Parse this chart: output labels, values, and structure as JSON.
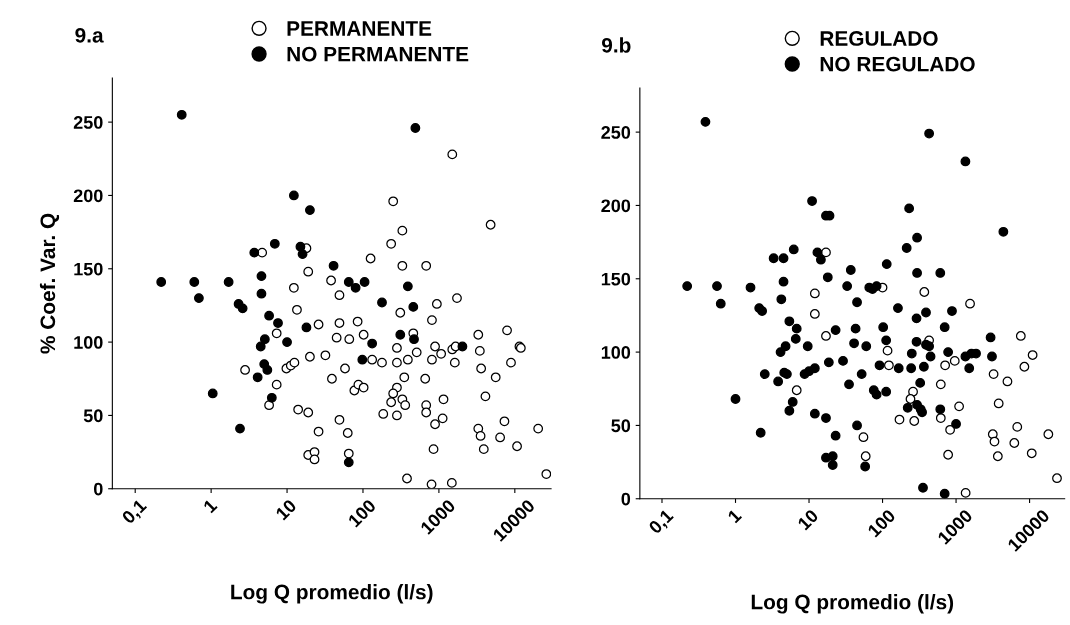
{
  "chart_data": [
    {
      "type": "scatter",
      "title": "9.a",
      "xlabel": "Log Q promedio (l/s)",
      "ylabel": "% Coef. Var. Q",
      "log": "x",
      "legend": "top",
      "marker": "circle",
      "grid": false,
      "xlim": [
        0.05,
        30000
      ],
      "ylim": [
        0,
        280
      ],
      "xticks": [
        {
          "value": 0.1,
          "label": "0,1"
        },
        1,
        10,
        100,
        1000,
        10000
      ],
      "yticks": [
        0,
        50,
        100,
        150,
        200,
        250
      ],
      "series": [
        {
          "name": "PERMANENTE",
          "color": "#ffffff",
          "x": [
            4.7,
            18,
            19,
            12.3,
            13.5,
            26,
            7.3,
            32,
            20,
            2.8,
            9.8,
            11.2,
            12.5,
            7.3,
            5.8,
            14,
            19,
            26,
            19,
            23,
            23,
            1500,
            250,
            330,
            235,
            4800,
            126,
            330,
            680,
            38,
            49,
            310,
            940,
            1730,
            810,
            85,
            49,
            102,
            45,
            66,
            460,
            3300,
            7900,
            280,
            890,
            1500,
            1660,
            1070,
            510,
            11500,
            12000,
            3460,
            132,
            178,
            280,
            390,
            810,
            1620,
            3600,
            8900,
            58,
            39,
            350,
            660,
            5600,
            77,
            87,
            102,
            280,
            250,
            330,
            360,
            235,
            185,
            280,
            680,
            680,
            1150,
            4100,
            890,
            1120,
            3300,
            3540,
            7300,
            6400,
            3900,
            10700,
            20300,
            49,
            63,
            65,
            850,
            380,
            800,
            1480,
            26000
          ],
          "values": [
            161,
            164,
            148,
            137,
            122,
            112,
            106,
            91,
            90,
            81,
            82,
            84,
            86,
            71,
            57,
            54,
            52,
            39,
            23,
            25,
            20,
            228,
            196,
            176,
            167,
            180,
            157,
            152,
            152,
            142,
            132,
            120,
            126,
            130,
            115,
            114,
            113,
            105,
            103,
            102,
            106,
            105,
            108,
            96,
            97,
            95,
            97,
            92,
            93,
            97,
            96,
            94,
            88,
            86,
            86,
            88,
            88,
            86,
            82,
            86,
            82,
            75,
            76,
            75,
            76,
            67,
            71,
            69,
            69,
            65,
            61,
            57,
            59,
            51,
            50,
            57,
            52,
            61,
            63,
            44,
            48,
            41,
            36,
            46,
            35,
            27,
            29,
            41,
            47,
            38,
            24,
            27,
            7,
            3,
            4,
            10
          ]
        },
        {
          "name": "NO PERMANENTE",
          "color": "#000000",
          "x": [
            0.41,
            12.3,
            20,
            6.9,
            3.7,
            15,
            16,
            0.22,
            0.6,
            1.7,
            0.69,
            4.6,
            4.6,
            2.3,
            2.6,
            5.8,
            7.6,
            18,
            5.1,
            4.5,
            10,
            5.0,
            5.5,
            4.1,
            1.05,
            6.3,
            2.4,
            490,
            41,
            65,
            80,
            105,
            390,
            178,
            460,
            132,
            310,
            470,
            98,
            2040,
            65
          ],
          "values": [
            255,
            200,
            190,
            167,
            161,
            165,
            160,
            141,
            141,
            141,
            130,
            145,
            133,
            126,
            123,
            118,
            113,
            110,
            102,
            97,
            100,
            85,
            81,
            76,
            65,
            62,
            41,
            246,
            152,
            141,
            137,
            141,
            138,
            127,
            124,
            99,
            105,
            102,
            88,
            97,
            18
          ]
        }
      ]
    },
    {
      "type": "scatter",
      "title": "9.b",
      "xlabel": "Log Q promedio (l/s)",
      "log": "x",
      "legend": "top",
      "marker": "circle",
      "grid": false,
      "xlim": [
        0.05,
        30000
      ],
      "ylim": [
        0,
        280
      ],
      "xticks": [
        {
          "value": 0.1,
          "label": "0,1"
        },
        1,
        10,
        100,
        1000,
        10000
      ],
      "yticks": [
        0,
        50,
        100,
        150,
        200,
        250
      ],
      "series": [
        {
          "name": "REGULADO",
          "color": "#ffffff",
          "x": [
            12,
            12,
            17,
            6.8,
            17,
            100,
            370,
            1550,
            117,
            122,
            430,
            710,
            960,
            7600,
            11000,
            8500,
            3240,
            5000,
            620,
            260,
            240,
            1100,
            3800,
            170,
            270,
            620,
            830,
            3160,
            3330,
            6800,
            6200,
            3700,
            10700,
            18000,
            55,
            59,
            780,
            1350,
            23600
          ],
          "values": [
            140,
            126,
            111,
            74,
            168,
            144,
            141,
            133,
            101,
            91,
            108,
            91,
            94,
            111,
            98,
            90,
            85,
            80,
            78,
            73,
            68,
            63,
            65,
            54,
            53,
            55,
            47,
            44,
            39,
            49,
            38,
            29,
            31,
            44,
            42,
            29,
            30,
            4,
            14
          ]
        },
        {
          "name": "NO REGULADO",
          "color": "#000000",
          "x": [
            0.39,
            11,
            17,
            19,
            3.3,
            4.5,
            6.2,
            13,
            14.5,
            18,
            0.22,
            0.56,
            1.6,
            0.63,
            4.5,
            4.2,
            2.1,
            2.3,
            5.4,
            6.8,
            6.6,
            4.8,
            4.1,
            9.6,
            2.5,
            4.6,
            5.0,
            3.8,
            8.7,
            10,
            12,
            1.0,
            6.0,
            5.4,
            12,
            2.2,
            17,
            21,
            21,
            17,
            430,
            1340,
            4400,
            230,
            295,
            213,
            37,
            114,
            295,
            610,
            33,
            66,
            73,
            83,
            45,
            162,
            290,
            390,
            880,
            700,
            23,
            43,
            102,
            41,
            60,
            112,
            290,
            390,
            430,
            2950,
            250,
            450,
            780,
            1340,
            1620,
            1870,
            3080,
            18.6,
            29,
            91,
            52,
            166,
            245,
            365,
            1510,
            35,
            325,
            76,
            83,
            112,
            220,
            295,
            330,
            345,
            610,
            45,
            1000,
            23,
            58,
            355,
            700
          ],
          "values": [
            257,
            203,
            193,
            193,
            164,
            164,
            170,
            168,
            163,
            151,
            145,
            145,
            144,
            133,
            148,
            136,
            130,
            128,
            121,
            116,
            109,
            104,
            100,
            104,
            85,
            86,
            85,
            80,
            85,
            87,
            89,
            68,
            66,
            60,
            58,
            45,
            28,
            29,
            23,
            55,
            249,
            230,
            182,
            198,
            178,
            171,
            156,
            160,
            154,
            154,
            145,
            144,
            143,
            145,
            134,
            130,
            123,
            127,
            128,
            117,
            115,
            116,
            117,
            106,
            104,
            108,
            107,
            105,
            104,
            110,
            99,
            97,
            100,
            97,
            99,
            99,
            97,
            93,
            94,
            91,
            85,
            89,
            89,
            90,
            89,
            78,
            79,
            74,
            71,
            73,
            62,
            64,
            61,
            59,
            61,
            50,
            51,
            43,
            22,
            7.5,
            3.4
          ]
        }
      ]
    }
  ]
}
